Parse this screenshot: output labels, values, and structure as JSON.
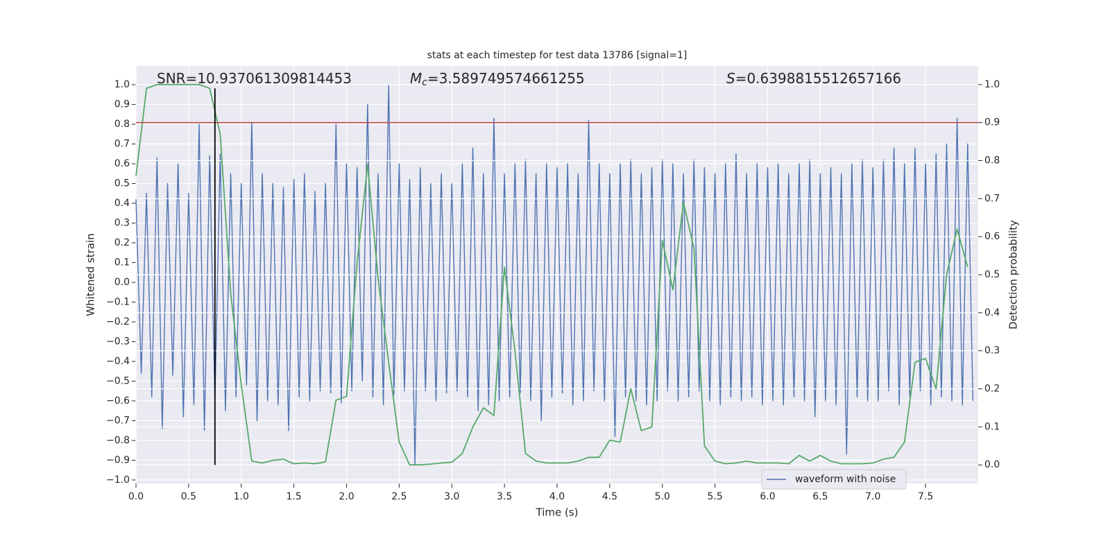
{
  "chart_data": {
    "type": "line",
    "title": "stats at each timestep for test data 13786 [signal=1]",
    "x_label": "Time (s)",
    "y_label": "Whitened strain",
    "y2_label": "Detection probability",
    "xlim": [
      0,
      8.0
    ],
    "ylim": [
      -1.018,
      1.095
    ],
    "y2lim": [
      -0.049,
      1.049
    ],
    "xticks": [
      {
        "value": 0,
        "label": "0.0"
      },
      0.5,
      {
        "value": 1,
        "label": "1.0"
      },
      1.5,
      {
        "value": 2,
        "label": "2.0"
      },
      2.5,
      {
        "value": 3,
        "label": "3.0"
      },
      3.5,
      {
        "value": 4,
        "label": "4.0"
      },
      4.5,
      {
        "value": 5,
        "label": "5.0"
      },
      5.5,
      {
        "value": 6,
        "label": "6.0"
      },
      6.5,
      {
        "value": 7,
        "label": "7.0"
      },
      7.5
    ],
    "yticks": [
      {
        "value": -1,
        "label": "−1.0"
      },
      {
        "value": -0.9,
        "label": "−0.9"
      },
      {
        "value": -0.8,
        "label": "−0.8"
      },
      {
        "value": -0.7,
        "label": "−0.7"
      },
      {
        "value": -0.6,
        "label": "−0.6"
      },
      {
        "value": -0.5,
        "label": "−0.5"
      },
      {
        "value": -0.4,
        "label": "−0.4"
      },
      {
        "value": -0.3,
        "label": "−0.3"
      },
      {
        "value": -0.2,
        "label": "−0.2"
      },
      {
        "value": -0.1,
        "label": "−0.1"
      },
      {
        "value": 0,
        "label": "0.0"
      },
      0.1,
      0.2,
      0.3,
      0.4,
      0.5,
      0.6,
      0.7,
      0.8,
      0.9,
      {
        "value": 1,
        "label": "1.0"
      }
    ],
    "y2ticks": [
      {
        "value": 0,
        "label": "0.0"
      },
      0.1,
      0.2,
      0.3,
      0.4,
      0.5,
      0.6,
      0.7,
      0.8,
      0.9,
      {
        "value": 1,
        "label": "1.0"
      }
    ],
    "grid": true,
    "legend_position": "lower right",
    "annotations": [
      {
        "text": "SNR=10.937061309814453"
      },
      {
        "symbol": "M",
        "subscript": "c",
        "text": "=3.589749574661255"
      },
      {
        "symbol": "S",
        "text": "=0.6398815512657166"
      }
    ],
    "hline": {
      "value": 0.9,
      "axis": "y2",
      "color": "#c44e52"
    },
    "vline": {
      "x": 0.75,
      "ymin": 0,
      "ymax": 0.99,
      "axis": "y2",
      "color": "#000000"
    },
    "series": [
      {
        "name": "waveform with noise",
        "color": "#4c72b0",
        "x": [
          0,
          0.05,
          0.1,
          0.15,
          0.2,
          0.25,
          0.3,
          0.35,
          0.4,
          0.45,
          0.5,
          0.55,
          0.6,
          0.65,
          0.7,
          0.75,
          0.8,
          0.85,
          0.9,
          0.95,
          1,
          1.05,
          1.1,
          1.15,
          1.2,
          1.25,
          1.3,
          1.35,
          1.4,
          1.45,
          1.5,
          1.55,
          1.6,
          1.65,
          1.7,
          1.75,
          1.8,
          1.85,
          1.9,
          1.95,
          2,
          2.05,
          2.1,
          2.15,
          2.2,
          2.25,
          2.3,
          2.35,
          2.4,
          2.45,
          2.5,
          2.55,
          2.6,
          2.65,
          2.7,
          2.75,
          2.8,
          2.85,
          2.9,
          2.95,
          3,
          3.05,
          3.1,
          3.15,
          3.2,
          3.25,
          3.3,
          3.35,
          3.4,
          3.45,
          3.5,
          3.55,
          3.6,
          3.65,
          3.7,
          3.75,
          3.8,
          3.85,
          3.9,
          3.95,
          4,
          4.05,
          4.1,
          4.15,
          4.2,
          4.25,
          4.3,
          4.35,
          4.4,
          4.45,
          4.5,
          4.55,
          4.6,
          4.65,
          4.7,
          4.75,
          4.8,
          4.85,
          4.9,
          4.95,
          5,
          5.05,
          5.1,
          5.15,
          5.2,
          5.25,
          5.3,
          5.35,
          5.4,
          5.45,
          5.5,
          5.55,
          5.6,
          5.65,
          5.7,
          5.75,
          5.8,
          5.85,
          5.9,
          5.95,
          6,
          6.05,
          6.1,
          6.15,
          6.2,
          6.25,
          6.3,
          6.35,
          6.4,
          6.45,
          6.5,
          6.55,
          6.6,
          6.65,
          6.7,
          6.75,
          6.8,
          6.85,
          6.9,
          6.95,
          7,
          7.05,
          7.1,
          7.15,
          7.2,
          7.25,
          7.3,
          7.35,
          7.4,
          7.45,
          7.5,
          7.55,
          7.6,
          7.65,
          7.7,
          7.75,
          7.8,
          7.85,
          7.9,
          7.95
        ],
        "values": [
          0.42,
          -0.46,
          0.45,
          -0.58,
          0.63,
          -0.74,
          0.5,
          -0.47,
          0.6,
          -0.68,
          0.45,
          -0.62,
          0.8,
          -0.75,
          0.64,
          -0.6,
          0.65,
          -0.65,
          0.55,
          -0.58,
          0.5,
          -0.52,
          0.81,
          -0.7,
          0.55,
          -0.6,
          0.5,
          -0.62,
          0.48,
          -0.75,
          0.52,
          -0.58,
          0.55,
          -0.6,
          0.46,
          -0.55,
          0.5,
          -0.56,
          0.8,
          -0.61,
          0.6,
          -0.55,
          0.58,
          -0.5,
          0.9,
          -0.58,
          0.55,
          -0.62,
          1.0,
          -0.57,
          0.6,
          -0.55,
          0.52,
          -0.92,
          0.58,
          -0.55,
          0.5,
          -0.6,
          0.55,
          -0.56,
          0.5,
          -0.55,
          0.6,
          -0.58,
          0.68,
          -0.65,
          0.55,
          -0.62,
          0.83,
          -0.6,
          0.55,
          -0.58,
          0.6,
          -0.56,
          0.62,
          -0.6,
          0.55,
          -0.7,
          0.6,
          -0.58,
          0.58,
          -0.56,
          0.6,
          -0.62,
          0.55,
          -0.6,
          0.82,
          -0.55,
          0.6,
          -0.6,
          0.55,
          -0.78,
          0.6,
          -0.58,
          0.62,
          -0.6,
          0.55,
          -0.62,
          0.58,
          -0.6,
          0.62,
          -0.55,
          0.6,
          -0.6,
          0.55,
          -0.58,
          0.62,
          -0.55,
          0.58,
          -0.6,
          0.55,
          -0.62,
          0.6,
          -0.58,
          0.65,
          -0.6,
          0.55,
          -0.58,
          0.6,
          -0.62,
          0.58,
          -0.6,
          0.6,
          -0.62,
          0.55,
          -0.58,
          0.6,
          -0.6,
          0.62,
          -0.68,
          0.55,
          -0.6,
          0.58,
          -0.62,
          0.55,
          -0.87,
          0.6,
          -0.58,
          0.62,
          -0.6,
          0.58,
          -0.6,
          0.62,
          -0.55,
          0.68,
          -0.62,
          0.6,
          -0.58,
          0.68,
          -0.55,
          0.6,
          -0.62,
          0.65,
          -0.58,
          0.7,
          -0.6,
          0.83,
          -0.62,
          0.7,
          -0.6
        ]
      },
      {
        "color": "#55a868",
        "axis": "y2",
        "x": [
          0,
          0.1,
          0.2,
          0.3,
          0.4,
          0.5,
          0.6,
          0.7,
          0.8,
          0.9,
          1,
          1.1,
          1.2,
          1.3,
          1.4,
          1.5,
          1.6,
          1.7,
          1.8,
          1.9,
          2,
          2.1,
          2.2,
          2.3,
          2.4,
          2.5,
          2.6,
          2.7,
          2.8,
          2.9,
          3,
          3.1,
          3.2,
          3.3,
          3.4,
          3.5,
          3.6,
          3.7,
          3.8,
          3.9,
          4,
          4.1,
          4.2,
          4.3,
          4.4,
          4.5,
          4.6,
          4.7,
          4.8,
          4.9,
          5,
          5.1,
          5.2,
          5.3,
          5.4,
          5.5,
          5.6,
          5.7,
          5.8,
          5.9,
          6,
          6.1,
          6.2,
          6.3,
          6.4,
          6.5,
          6.6,
          6.7,
          6.8,
          6.9,
          7,
          7.1,
          7.2,
          7.3,
          7.4,
          7.5,
          7.6,
          7.7,
          7.8,
          7.9
        ],
        "values": [
          0.76,
          0.99,
          1.0,
          1.0,
          1.0,
          1.0,
          1.0,
          0.99,
          0.87,
          0.45,
          0.21,
          0.01,
          0.005,
          0.012,
          0.015,
          0.003,
          0.005,
          0.003,
          0.008,
          0.17,
          0.18,
          0.53,
          0.79,
          0.49,
          0.27,
          0.06,
          0.0,
          0.0,
          0.002,
          0.005,
          0.007,
          0.03,
          0.1,
          0.15,
          0.13,
          0.52,
          0.3,
          0.03,
          0.01,
          0.005,
          0.005,
          0.005,
          0.01,
          0.02,
          0.02,
          0.065,
          0.06,
          0.2,
          0.09,
          0.1,
          0.59,
          0.46,
          0.69,
          0.57,
          0.05,
          0.01,
          0.003,
          0.005,
          0.01,
          0.005,
          0.005,
          0.005,
          0.003,
          0.025,
          0.01,
          0.025,
          0.01,
          0.003,
          0.003,
          0.003,
          0.005,
          0.015,
          0.02,
          0.06,
          0.27,
          0.28,
          0.2,
          0.5,
          0.62,
          0.52
        ]
      }
    ]
  }
}
